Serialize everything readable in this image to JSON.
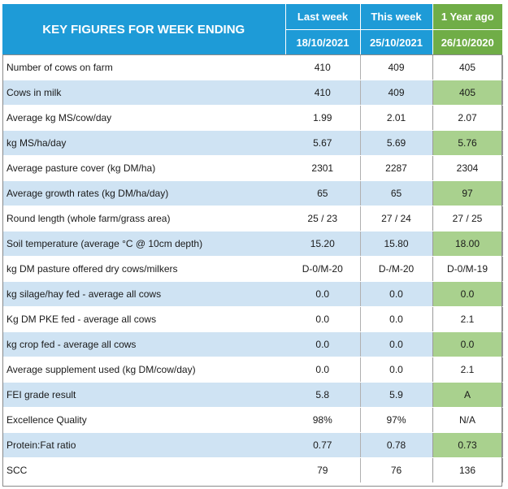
{
  "header": {
    "title": "KEY FIGURES FOR WEEK ENDING",
    "columns": [
      {
        "label": "Last week",
        "date": "18/10/2021"
      },
      {
        "label": "This week",
        "date": "25/10/2021"
      },
      {
        "label": "1 Year ago",
        "date": "26/10/2020"
      }
    ]
  },
  "colors": {
    "header_blue": "#1e9bd7",
    "header_green": "#70ad47",
    "row_blue": "#cfe3f3",
    "row_green": "#a9d18e"
  },
  "rows": [
    {
      "label": "Number of cows on farm",
      "last": "410",
      "this": "409",
      "year": "405"
    },
    {
      "label": "Cows in milk",
      "last": "410",
      "this": "409",
      "year": "405"
    },
    {
      "label": "Average kg MS/cow/day",
      "last": "1.99",
      "this": "2.01",
      "year": "2.07"
    },
    {
      "label": "kg MS/ha/day",
      "last": "5.67",
      "this": "5.69",
      "year": "5.76"
    },
    {
      "label": "Average pasture cover (kg DM/ha)",
      "last": "2301",
      "this": "2287",
      "year": "2304"
    },
    {
      "label": "Average growth rates (kg DM/ha/day)",
      "last": "65",
      "this": "65",
      "year": "97"
    },
    {
      "label": "Round length (whole farm/grass area)",
      "last": "25 / 23",
      "this": "27 / 24",
      "year": "27 / 25"
    },
    {
      "label": "Soil temperature (average °C  @ 10cm depth)",
      "last": "15.20",
      "this": "15.80",
      "year": "18.00"
    },
    {
      "label": "kg DM pasture offered dry cows/milkers",
      "last": "D-0/M-20",
      "this": "D-/M-20",
      "year": "D-0/M-19"
    },
    {
      "label": "kg silage/hay fed - average all cows",
      "last": "0.0",
      "this": "0.0",
      "year": "0.0"
    },
    {
      "label": "Kg DM PKE fed - average all cows",
      "last": "0.0",
      "this": "0.0",
      "year": "2.1"
    },
    {
      "label": "kg crop fed - average all cows",
      "last": "0.0",
      "this": "0.0",
      "year": "0.0"
    },
    {
      "label": "Average supplement used (kg DM/cow/day)",
      "last": "0.0",
      "this": "0.0",
      "year": "2.1"
    },
    {
      "label": "FEI grade result",
      "last": "5.8",
      "this": "5.9",
      "year": "A"
    },
    {
      "label": "Excellence Quality",
      "last": "98%",
      "this": "97%",
      "year": "N/A"
    },
    {
      "label": "Protein:Fat ratio",
      "last": "0.77",
      "this": "0.78",
      "year": "0.73"
    },
    {
      "label": "SCC",
      "last": "79",
      "this": "76",
      "year": "136"
    }
  ]
}
